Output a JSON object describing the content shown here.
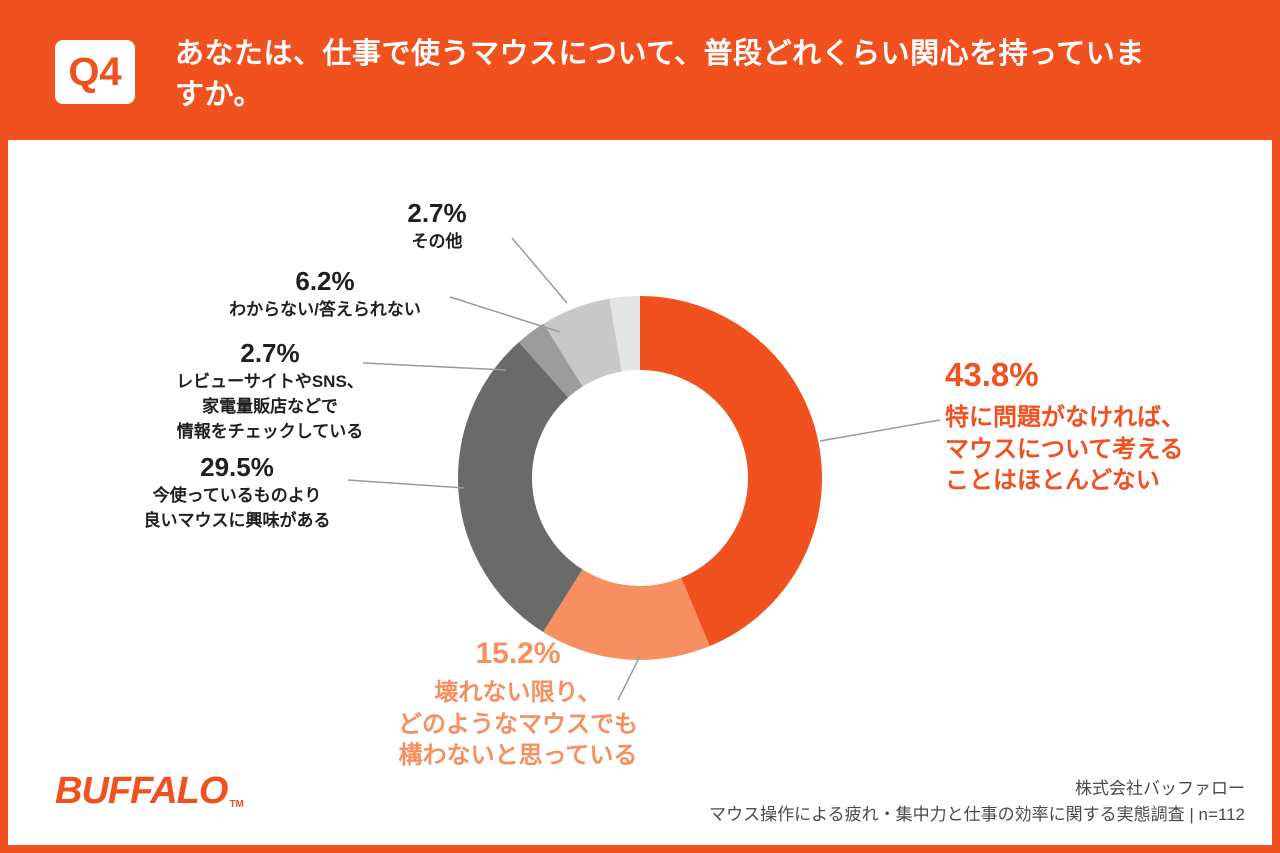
{
  "header": {
    "q_label": "Q4",
    "title": "あなたは、仕事で使うマウスについて、普段どれくらい関心を持っていますか。"
  },
  "chart_data": {
    "type": "pie",
    "donut": true,
    "unit": "%",
    "title": "あなたは、仕事で使うマウスについて、普段どれくらい関心を持っていますか。",
    "n": 112,
    "start_angle": "top",
    "direction": "clockwise",
    "legend_position": "callouts",
    "segments": [
      {
        "label": "特に問題がなければ、マウスについて考えることはほとんどない",
        "value": 43.8,
        "color": "#F0511E"
      },
      {
        "label": "壊れない限り、どのようなマウスでも構わないと思っている",
        "value": 15.2,
        "color": "#F78F60"
      },
      {
        "label": "今使っているものより良いマウスに興味がある",
        "value": 29.5,
        "color": "#6A6A6A"
      },
      {
        "label": "レビューサイトやSNS、家電量販店などで情報をチェックしている",
        "value": 2.7,
        "color": "#9C9C9C"
      },
      {
        "label": "わからない/答えられない",
        "value": 6.2,
        "color": "#C8C8C8"
      },
      {
        "label": "その他",
        "value": 2.7,
        "color": "#E4E4E4"
      }
    ]
  },
  "callouts": {
    "no_problem": {
      "pct": "43.8%",
      "lines": [
        "特に問題がなければ、",
        "マウスについて考える",
        "ことはほとんどない"
      ]
    },
    "any_mouse": {
      "pct": "15.2%",
      "lines": [
        "壊れない限り、",
        "どのようなマウスでも",
        "構わないと思っている"
      ]
    },
    "interested": {
      "pct": "29.5%",
      "lines": [
        "今使っているものより",
        "良いマウスに興味がある"
      ]
    },
    "check_info": {
      "pct": "2.7%",
      "lines": [
        "レビューサイトやSNS、",
        "家電量販店などで",
        "情報をチェックしている"
      ]
    },
    "dont_know": {
      "pct": "6.2%",
      "lines": [
        "わからない/答えられない"
      ]
    },
    "other": {
      "pct": "2.7%",
      "lines": [
        "その他"
      ]
    }
  },
  "footer": {
    "logo": "BUFFALO",
    "trademark": "TM",
    "company": "株式会社バッファロー",
    "survey": "マウス操作による疲れ・集中力と仕事の効率に関する実態調査 | n=112"
  }
}
